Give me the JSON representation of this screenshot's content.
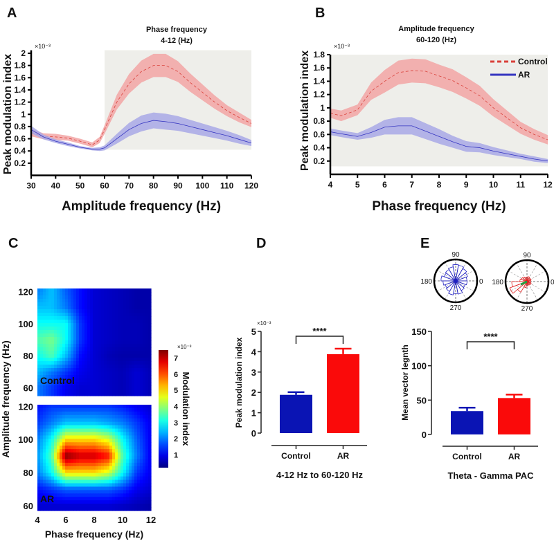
{
  "panel_labels": [
    "A",
    "B",
    "C",
    "D",
    "E"
  ],
  "colors": {
    "control_band": "#f2a4a4",
    "control_line": "#d9403a",
    "ar_band": "#a8a8e6",
    "ar_line": "#3434c0",
    "shade": "#eeeeea",
    "bar_control": "#0a14b4",
    "bar_ar": "#fa0a0a",
    "polar_control": "#2020c0",
    "polar_ar": "#e02020",
    "polar_vector": "#20a040"
  },
  "chart_data": [
    {
      "panel": "A",
      "type": "line",
      "title_lines": [
        "Phase frequency",
        "4-12 (Hz)"
      ],
      "xlabel": "Amplitude frequency (Hz)",
      "ylabel": "Peak modulation index",
      "y_multiplier": "×10⁻³",
      "xlim": [
        30,
        120
      ],
      "ylim": [
        0,
        2.05
      ],
      "xticks": [
        "30",
        "40",
        "50",
        "60",
        "70",
        "80",
        "90",
        "100",
        "110",
        "120"
      ],
      "yticks": [
        "0.2",
        "0.4",
        "0.6",
        "0.8",
        "1",
        "1.2",
        "1.4",
        "1.6",
        "1.8",
        "2"
      ],
      "shaded_region": {
        "x": [
          60,
          120
        ],
        "y": [
          0.42,
          2.05
        ]
      },
      "x": [
        30,
        35,
        40,
        45,
        50,
        55,
        58,
        60,
        65,
        70,
        75,
        80,
        85,
        90,
        95,
        100,
        105,
        110,
        115,
        120
      ],
      "series": [
        {
          "group": "Control",
          "style": "dashed",
          "mean": [
            0.7,
            0.64,
            0.63,
            0.61,
            0.56,
            0.5,
            0.58,
            0.75,
            1.2,
            1.5,
            1.7,
            1.8,
            1.8,
            1.7,
            1.52,
            1.36,
            1.2,
            1.06,
            0.95,
            0.85
          ],
          "sem": [
            0.06,
            0.05,
            0.05,
            0.04,
            0.04,
            0.04,
            0.05,
            0.07,
            0.12,
            0.16,
            0.18,
            0.19,
            0.19,
            0.17,
            0.15,
            0.13,
            0.11,
            0.09,
            0.08,
            0.06
          ]
        },
        {
          "group": "AR",
          "style": "solid",
          "mean": [
            0.75,
            0.63,
            0.56,
            0.51,
            0.46,
            0.43,
            0.43,
            0.45,
            0.6,
            0.75,
            0.85,
            0.9,
            0.88,
            0.85,
            0.8,
            0.75,
            0.7,
            0.65,
            0.59,
            0.53
          ],
          "sem": [
            0.06,
            0.04,
            0.03,
            0.03,
            0.02,
            0.02,
            0.03,
            0.04,
            0.08,
            0.11,
            0.13,
            0.13,
            0.13,
            0.12,
            0.11,
            0.1,
            0.09,
            0.08,
            0.07,
            0.05
          ]
        }
      ]
    },
    {
      "panel": "B",
      "type": "line",
      "title_lines": [
        "Amplitude frequency",
        "60-120 (Hz)"
      ],
      "xlabel": "Phase frequency (Hz)",
      "ylabel": "Peak modulation index",
      "y_multiplier": "×10⁻³",
      "xlim": [
        4,
        12
      ],
      "ylim": [
        0,
        1.8
      ],
      "xticks": [
        "4",
        "5",
        "6",
        "7",
        "8",
        "9",
        "10",
        "11",
        "12"
      ],
      "yticks": [
        "0.2",
        "0.4",
        "0.6",
        "0.8",
        "1",
        "1.2",
        "1.4",
        "1.6",
        "1.8"
      ],
      "shaded_region": {
        "x": [
          4,
          12
        ],
        "y": [
          0.12,
          1.8
        ]
      },
      "legend": {
        "placement": "top-right",
        "entries": [
          "Control",
          "AR"
        ]
      },
      "x": [
        4,
        4.4,
        5,
        5.5,
        6,
        6.5,
        7,
        7.5,
        8,
        8.5,
        9,
        9.5,
        10,
        10.5,
        11,
        11.5,
        12
      ],
      "series": [
        {
          "name": "Control",
          "style": "dashed",
          "mean": [
            0.92,
            0.88,
            0.97,
            1.25,
            1.4,
            1.53,
            1.56,
            1.55,
            1.48,
            1.41,
            1.3,
            1.18,
            1.0,
            0.85,
            0.7,
            0.6,
            0.52
          ],
          "sem": [
            0.07,
            0.08,
            0.08,
            0.13,
            0.17,
            0.18,
            0.18,
            0.18,
            0.17,
            0.17,
            0.16,
            0.15,
            0.13,
            0.11,
            0.09,
            0.08,
            0.07
          ]
        },
        {
          "name": "AR",
          "style": "solid",
          "mean": [
            0.64,
            0.61,
            0.57,
            0.63,
            0.71,
            0.73,
            0.73,
            0.65,
            0.57,
            0.49,
            0.42,
            0.4,
            0.35,
            0.31,
            0.27,
            0.23,
            0.2
          ],
          "sem": [
            0.05,
            0.05,
            0.05,
            0.08,
            0.11,
            0.13,
            0.13,
            0.12,
            0.11,
            0.09,
            0.08,
            0.07,
            0.06,
            0.05,
            0.04,
            0.04,
            0.03
          ]
        }
      ]
    },
    {
      "panel": "C",
      "type": "heatmap",
      "xlabel": "Phase frequency (Hz)",
      "ylabel": "Amplitude frequency (Hz)",
      "x": [
        4,
        5,
        6,
        7,
        8,
        9,
        10,
        11,
        12
      ],
      "y": [
        60,
        70,
        80,
        90,
        100,
        110,
        120
      ],
      "xticks": [
        "4",
        "6",
        "8",
        "10",
        "12"
      ],
      "yticks": [
        "60",
        "80",
        "100",
        "120"
      ],
      "colorbar": {
        "label": "Modulation index",
        "multiplier": "×10⁻³",
        "ticks": [
          "1",
          "2",
          "3",
          "4",
          "5",
          "6",
          "7"
        ],
        "range": [
          0.2,
          7.5
        ],
        "colormap": "jet"
      },
      "maps": [
        {
          "label": "Control",
          "ylim": [
            55,
            122
          ],
          "z": [
            [
              2.0,
              1.5,
              1.0,
              0.8,
              0.8,
              0.7,
              0.6,
              0.8,
              0.6
            ],
            [
              2.5,
              2.0,
              1.5,
              1.0,
              0.8,
              0.7,
              0.6,
              0.8,
              0.6
            ],
            [
              3.0,
              3.5,
              2.5,
              1.2,
              0.8,
              0.6,
              0.5,
              0.5,
              0.5
            ],
            [
              3.5,
              3.8,
              3.0,
              1.5,
              0.8,
              0.7,
              0.6,
              0.6,
              0.5
            ],
            [
              3.0,
              3.0,
              3.0,
              1.5,
              0.8,
              0.7,
              0.6,
              0.6,
              0.5
            ],
            [
              2.5,
              2.5,
              2.0,
              1.2,
              0.8,
              0.7,
              0.6,
              0.5,
              0.5
            ],
            [
              2.0,
              2.5,
              1.8,
              1.2,
              0.8,
              0.7,
              0.6,
              0.5,
              0.5
            ]
          ]
        },
        {
          "label": "AR",
          "ylim": [
            57,
            121
          ],
          "z": [
            [
              0.8,
              0.8,
              0.8,
              0.8,
              0.8,
              0.8,
              0.7,
              0.6,
              0.5
            ],
            [
              1.2,
              1.5,
              1.8,
              1.8,
              1.8,
              1.8,
              1.5,
              1.0,
              0.8
            ],
            [
              2.0,
              3.0,
              5.0,
              5.0,
              5.0,
              4.5,
              3.0,
              1.5,
              1.0
            ],
            [
              2.2,
              3.5,
              7.5,
              7.0,
              7.0,
              6.5,
              3.5,
              2.0,
              1.0
            ],
            [
              2.0,
              3.0,
              5.0,
              5.0,
              5.0,
              4.5,
              3.0,
              1.8,
              1.0
            ],
            [
              1.5,
              2.0,
              2.5,
              2.5,
              2.5,
              2.3,
              2.0,
              1.5,
              1.0
            ],
            [
              1.2,
              1.5,
              1.5,
              1.5,
              1.5,
              1.5,
              1.3,
              1.0,
              0.8
            ]
          ]
        }
      ]
    },
    {
      "panel": "D",
      "type": "bar",
      "categories": [
        "Control",
        "AR"
      ],
      "values": [
        1.88,
        3.88
      ],
      "errors": [
        0.13,
        0.27
      ],
      "ylabel": "Peak modulation index",
      "y_multiplier": "×10⁻³",
      "ylim": [
        0,
        5
      ],
      "yticks": [
        "0",
        "1",
        "2",
        "3",
        "4",
        "5"
      ],
      "significance": "****",
      "subtitle": "4-12 Hz to 60-120 Hz"
    },
    {
      "panel": "E",
      "type": "bar",
      "categories": [
        "Control",
        "AR"
      ],
      "values": [
        34,
        53
      ],
      "errors": [
        5,
        5
      ],
      "ylabel": "Mean vector legnth",
      "ylim": [
        0,
        150
      ],
      "yticks": [
        "0",
        "50",
        "100",
        "150"
      ],
      "significance": "****",
      "subtitle": "Theta - Gamma PAC",
      "polar": {
        "type": "rose",
        "angle_labels": [
          "90",
          "180",
          "270",
          "0"
        ],
        "bins_deg": 20,
        "plots": [
          {
            "group": "Control",
            "relative_counts": [
              0.55,
              0.62,
              0.7,
              0.78,
              0.8,
              0.7,
              0.65,
              0.6,
              0.72,
              0.62,
              0.55,
              0.6,
              0.7,
              0.62,
              0.66,
              0.55,
              0.5,
              0.56
            ]
          },
          {
            "group": "AR",
            "relative_counts": [
              0.18,
              0.22,
              0.2,
              0.25,
              0.22,
              0.2,
              0.25,
              0.3,
              0.35,
              0.75,
              0.9,
              0.6,
              0.3,
              0.22,
              0.18,
              0.2,
              0.22,
              0.18
            ],
            "mean_vector": {
              "angle_deg": 205,
              "relative_length": 0.32
            }
          }
        ]
      }
    }
  ]
}
